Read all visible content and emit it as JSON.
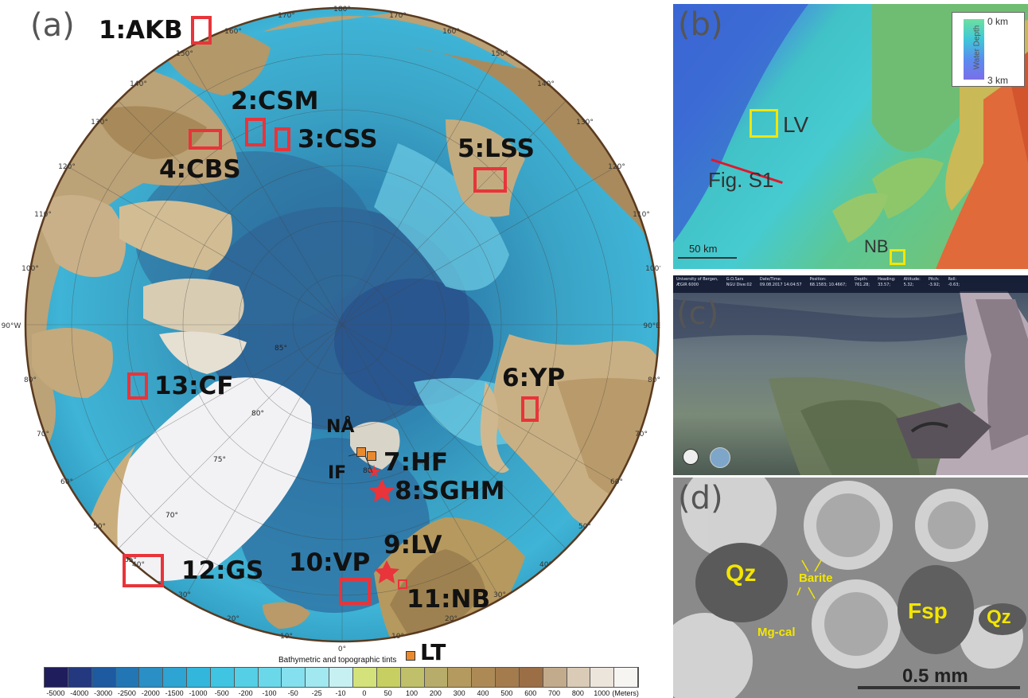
{
  "panels": {
    "a": {
      "label": "(a)"
    },
    "b": {
      "label": "(b)"
    },
    "c": {
      "label": "(c)"
    },
    "d": {
      "label": "(d)"
    }
  },
  "sites": [
    {
      "id": "akb",
      "label": "1:AKB"
    },
    {
      "id": "csm",
      "label": "2:CSM"
    },
    {
      "id": "css",
      "label": "3:CSS"
    },
    {
      "id": "cbs",
      "label": "4:CBS"
    },
    {
      "id": "lss",
      "label": "5:LSS"
    },
    {
      "id": "yp",
      "label": "6:YP"
    },
    {
      "id": "hf",
      "label": "7:HF"
    },
    {
      "id": "sghm",
      "label": "8:SGHM"
    },
    {
      "id": "lv",
      "label": "9:LV"
    },
    {
      "id": "vp",
      "label": "10:VP"
    },
    {
      "id": "nb",
      "label": "11:NB"
    },
    {
      "id": "gs",
      "label": "12:GS"
    },
    {
      "id": "cf",
      "label": "13:CF"
    }
  ],
  "other_sites": {
    "na": "NÅ",
    "if": "IF",
    "lt": "LT"
  },
  "longitudes": [
    "180°",
    "170°",
    "170°",
    "160°",
    "160°",
    "150°",
    "150°",
    "140°",
    "140°",
    "130°",
    "130°",
    "120°",
    "120°",
    "110°",
    "110°",
    "100°",
    "100°",
    "90°W",
    "90°E",
    "80°",
    "80°",
    "70°",
    "70°",
    "60°",
    "60°",
    "50°",
    "50°",
    "40°",
    "40°",
    "30°",
    "30°",
    "20°",
    "20°",
    "10°",
    "10°",
    "0°"
  ],
  "latitudes": [
    "85°",
    "80°",
    "75°",
    "70°",
    "65°",
    "80°"
  ],
  "colorbar": {
    "title": "Bathymetric and topographic tints",
    "ticks": [
      "-5000",
      "-4000",
      "-3000",
      "-2500",
      "-2000",
      "-1500",
      "-1000",
      "-500",
      "-200",
      "-100",
      "-50",
      "-25",
      "-10",
      "0",
      "50",
      "100",
      "200",
      "300",
      "400",
      "500",
      "600",
      "700",
      "800",
      "1000",
      "(Meters)"
    ],
    "colors": [
      "#1f1d5c",
      "#24387f",
      "#1e5aa0",
      "#2276b4",
      "#2a8fc4",
      "#2ea4d2",
      "#33b6dc",
      "#3fc4e2",
      "#55cfe6",
      "#6bd8ea",
      "#84e0ee",
      "#a1e8f1",
      "#c7f0f2",
      "#d3e27a",
      "#c7cf62",
      "#c0c06a",
      "#b8ac6a",
      "#b49a5e",
      "#ad8a55",
      "#a47b4d",
      "#9b6e46",
      "#c2ab8c",
      "#dacbb7",
      "#ece5dc",
      "#f7f5f2"
    ]
  },
  "panel_b": {
    "legend_title": "Water Depth",
    "legend_top": "0 km",
    "legend_bottom": "3 km",
    "box_lv": "LV",
    "box_nb": "NB",
    "fig_ref": "Fig. S1",
    "scale": "50 km"
  },
  "panel_c": {
    "hud": [
      {
        "k": "University of Bergen,",
        "v": "ÆGIR 6000"
      },
      {
        "k": "G.O.Sars",
        "v": "NGU Dive:02"
      },
      {
        "k": "Date/Time:",
        "v": "09.08.2017 14:04:57"
      },
      {
        "k": "Position:",
        "v": "68.1583; 10.4667;"
      },
      {
        "k": "Depth:",
        "v": "761.28;"
      },
      {
        "k": "Heading:",
        "v": "33.57;"
      },
      {
        "k": "Altitude:",
        "v": "5.32;"
      },
      {
        "k": "Pitch:",
        "v": "-3.92;"
      },
      {
        "k": "Roll:",
        "v": "-0.63;"
      }
    ]
  },
  "panel_d": {
    "labels": {
      "qz1": "Qz",
      "qz2": "Qz",
      "fsp": "Fsp",
      "barite": "Barite",
      "mgcal": "Mg-cal"
    },
    "scale": "0.5 mm"
  },
  "colors": {
    "site_box": "#e8343a",
    "site_star": "#e8343a",
    "yellow": "#f3e600"
  }
}
